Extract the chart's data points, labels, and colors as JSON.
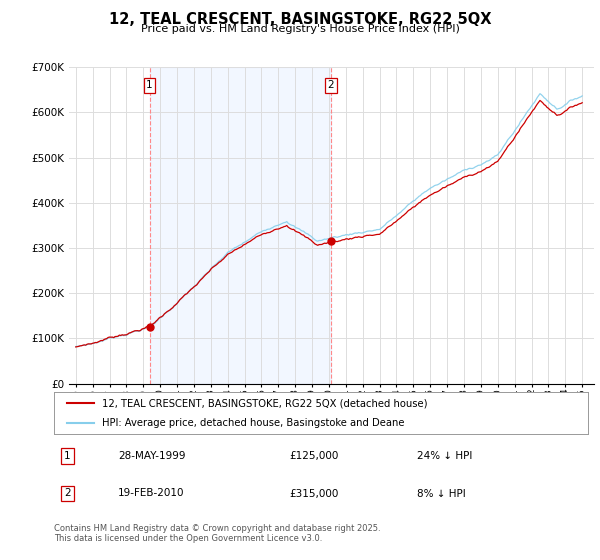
{
  "title": "12, TEAL CRESCENT, BASINGSTOKE, RG22 5QX",
  "subtitle": "Price paid vs. HM Land Registry's House Price Index (HPI)",
  "legend_line1": "12, TEAL CRESCENT, BASINGSTOKE, RG22 5QX (detached house)",
  "legend_line2": "HPI: Average price, detached house, Basingstoke and Deane",
  "footer": "Contains HM Land Registry data © Crown copyright and database right 2025.\nThis data is licensed under the Open Government Licence v3.0.",
  "transaction1_date": "28-MAY-1999",
  "transaction1_price": "£125,000",
  "transaction1_hpi": "24% ↓ HPI",
  "transaction2_date": "19-FEB-2010",
  "transaction2_price": "£315,000",
  "transaction2_hpi": "8% ↓ HPI",
  "t1_year": 1999.37,
  "t2_year": 2010.12,
  "t1_price": 125000,
  "t2_price": 315000,
  "ylim": [
    0,
    700000
  ],
  "yticks": [
    0,
    100000,
    200000,
    300000,
    400000,
    500000,
    600000,
    700000
  ],
  "hpi_color": "#87CEEB",
  "price_color": "#cc0000",
  "shade_color": "#ddeeff",
  "vline_color": "#ff8888",
  "background_color": "#ffffff",
  "grid_color": "#dddddd"
}
